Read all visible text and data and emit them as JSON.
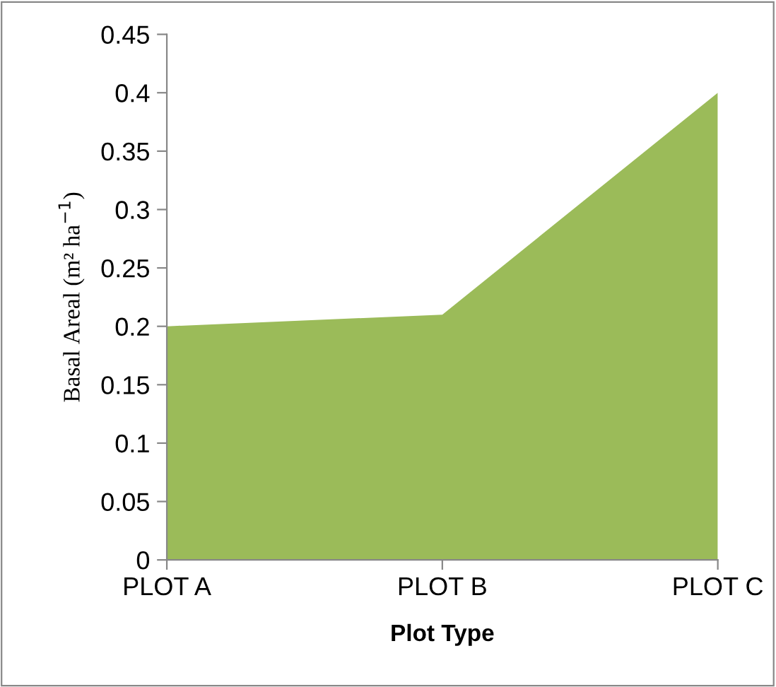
{
  "chart_data": {
    "type": "area",
    "xlabel": "Plot Type",
    "ylabel": "Basal Areal (m² ha$^{−1}$)",
    "categories": [
      "PLOT A",
      "PLOT B",
      "PLOT C"
    ],
    "series": [
      {
        "color": "#9bbb59",
        "values": [
          0.2,
          0.21,
          0.4
        ]
      }
    ],
    "ylim": [
      0,
      0.45
    ],
    "yticks": [
      0,
      {
        "value": 0.05,
        "label": "0.05"
      },
      {
        "value": 0.1,
        "label": "0.1"
      },
      {
        "value": 0.15,
        "label": "0.15"
      },
      {
        "value": 0.2,
        "label": "0.2"
      },
      {
        "value": 0.25,
        "label": "0.25"
      },
      {
        "value": 0.3,
        "label": "0.3"
      },
      {
        "value": 0.35,
        "label": "0.35"
      },
      {
        "value": 0.4,
        "label": "0.4"
      },
      {
        "value": 0.45,
        "label": "0.45"
      }
    ],
    "grid": false,
    "legend": false
  }
}
